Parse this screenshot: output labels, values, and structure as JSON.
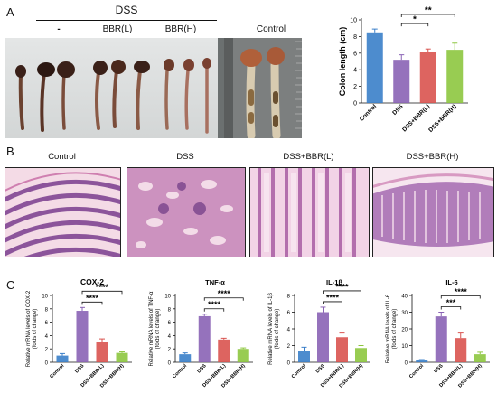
{
  "panels": {
    "a": "A",
    "b": "B",
    "c": "C"
  },
  "panel_a": {
    "group_label": "DSS",
    "lanes": [
      "-",
      "BBR(L)",
      "BBR(H)"
    ],
    "control_label": "Control"
  },
  "panel_b": {
    "labels": [
      "Control",
      "DSS",
      "DSS+BBR(L)",
      "DSS+BBR(H)"
    ]
  },
  "colors": {
    "control": "#3a7fc9",
    "dss": "#8a63b5",
    "bbr_l": "#d9534f",
    "bbr_h": "#8dc63f"
  },
  "chart_data": [
    {
      "type": "bar",
      "id": "colon",
      "title": "",
      "ylabel": "Colon length (cm)",
      "categories": [
        "Control",
        "DSS",
        "DSS+BBR(L)",
        "DSS+BBR(H)"
      ],
      "values": [
        8.5,
        5.2,
        6.1,
        6.4
      ],
      "errors": [
        0.4,
        0.6,
        0.4,
        0.8
      ],
      "ylim": [
        0,
        10
      ],
      "yticks": [
        0,
        2,
        4,
        6,
        8,
        10
      ],
      "significance": [
        {
          "from": 1,
          "to": 2,
          "label": "*"
        },
        {
          "from": 1,
          "to": 3,
          "label": "**"
        }
      ]
    },
    {
      "type": "bar",
      "id": "cox2",
      "title": "COX-2",
      "ylabel": "Relative mRNA levels of COX-2 (folds of change)",
      "categories": [
        "Control",
        "DSS",
        "DSS+BBR(L)",
        "DSS+BBR(H)"
      ],
      "values": [
        1.0,
        7.7,
        3.1,
        1.4
      ],
      "errors": [
        0.3,
        0.5,
        0.4,
        0.15
      ],
      "ylim": [
        0,
        10
      ],
      "yticks": [
        0,
        2,
        4,
        6,
        8,
        10
      ],
      "significance": [
        {
          "from": 1,
          "to": 2,
          "label": "****"
        },
        {
          "from": 1,
          "to": 3,
          "label": "****"
        }
      ]
    },
    {
      "type": "bar",
      "id": "tnf",
      "title": "TNF-α",
      "ylabel": "Relative mRNA levels of TNF-α (folds of change)",
      "categories": [
        "Control",
        "DSS",
        "DSS+BBR(L)",
        "DSS+BBR(H)"
      ],
      "values": [
        1.2,
        6.9,
        3.4,
        2.0
      ],
      "errors": [
        0.2,
        0.3,
        0.2,
        0.15
      ],
      "ylim": [
        0,
        10
      ],
      "yticks": [
        0,
        2,
        4,
        6,
        8,
        10
      ],
      "significance": [
        {
          "from": 1,
          "to": 2,
          "label": "****"
        },
        {
          "from": 1,
          "to": 3,
          "label": "****"
        }
      ]
    },
    {
      "type": "bar",
      "id": "il1b",
      "title": "IL-1β",
      "ylabel": "Relative mRNA levels of IL-1β (folds of change)",
      "categories": [
        "Control",
        "DSS",
        "DSS+BBR(L)",
        "DSS+BBR(H)"
      ],
      "values": [
        1.3,
        6.0,
        3.0,
        1.7
      ],
      "errors": [
        0.5,
        0.6,
        0.5,
        0.3
      ],
      "ylim": [
        0,
        8
      ],
      "yticks": [
        0,
        2,
        4,
        6,
        8
      ],
      "significance": [
        {
          "from": 1,
          "to": 2,
          "label": "****"
        },
        {
          "from": 1,
          "to": 3,
          "label": "****"
        }
      ]
    },
    {
      "type": "bar",
      "id": "il6",
      "title": "IL-6",
      "ylabel": "Relative mRNA levels of IL-6 (folds of change)",
      "categories": [
        "Control",
        "DSS",
        "DSS+BBR(L)",
        "DSS+BBR(H)"
      ],
      "values": [
        1.2,
        27.5,
        14.5,
        4.8
      ],
      "errors": [
        0.4,
        2.5,
        3.0,
        1.2
      ],
      "ylim": [
        0,
        40
      ],
      "yticks": [
        0,
        10,
        20,
        30,
        40
      ],
      "significance": [
        {
          "from": 1,
          "to": 2,
          "label": "***"
        },
        {
          "from": 1,
          "to": 3,
          "label": "****"
        }
      ]
    }
  ]
}
